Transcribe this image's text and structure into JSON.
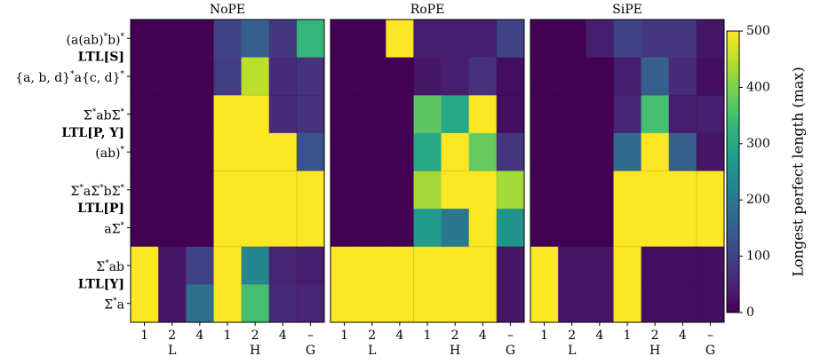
{
  "chart_data": {
    "type": "heatmap",
    "colormap": "viridis",
    "zlim": [
      0,
      500
    ],
    "zticks": [
      0,
      100,
      200,
      300,
      400,
      500
    ],
    "colorbar_label": "Longest perfect length (max)",
    "x_groups": [
      {
        "label": "L",
        "categories": [
          "1",
          "2",
          "4"
        ]
      },
      {
        "label": "H",
        "categories": [
          "1",
          "2",
          "4"
        ]
      },
      {
        "label": "G",
        "categories": [
          "–"
        ]
      }
    ],
    "y_groups": [
      {
        "label": "LTL[S]",
        "categories": [
          "(a(ab)*b)*",
          "{a, b, d}*a{c, d}*"
        ]
      },
      {
        "label": "LTL[P, Y]",
        "categories": [
          "Σ*abΣ*",
          "(ab)*"
        ]
      },
      {
        "label": "LTL[P]",
        "categories": [
          "Σ*aΣ*bΣ*",
          "aΣ*"
        ]
      },
      {
        "label": "LTL[Y]",
        "categories": [
          "Σ*ab",
          "Σ*a"
        ]
      }
    ],
    "panels": [
      {
        "title": "NoPE",
        "values": [
          [
            0,
            0,
            0,
            100,
            150,
            80,
            330
          ],
          [
            0,
            0,
            0,
            90,
            450,
            60,
            70
          ],
          [
            0,
            0,
            0,
            500,
            500,
            60,
            70
          ],
          [
            0,
            0,
            0,
            500,
            500,
            500,
            130
          ],
          [
            0,
            0,
            0,
            500,
            500,
            500,
            500
          ],
          [
            0,
            0,
            0,
            500,
            500,
            500,
            500
          ],
          [
            500,
            30,
            100,
            500,
            230,
            50,
            40
          ],
          [
            500,
            30,
            180,
            500,
            350,
            60,
            50
          ]
        ]
      },
      {
        "title": "RoPE",
        "values": [
          [
            0,
            0,
            500,
            40,
            40,
            40,
            100
          ],
          [
            0,
            0,
            0,
            30,
            40,
            70,
            20
          ],
          [
            0,
            0,
            0,
            370,
            300,
            500,
            20
          ],
          [
            0,
            0,
            0,
            300,
            500,
            380,
            80
          ],
          [
            0,
            0,
            0,
            430,
            500,
            500,
            430
          ],
          [
            0,
            0,
            0,
            270,
            200,
            500,
            260
          ],
          [
            500,
            500,
            500,
            500,
            500,
            500,
            30
          ],
          [
            500,
            500,
            500,
            500,
            500,
            500,
            30
          ]
        ]
      },
      {
        "title": "SiPE",
        "values": [
          [
            0,
            0,
            40,
            100,
            80,
            80,
            30
          ],
          [
            0,
            0,
            0,
            40,
            150,
            60,
            20
          ],
          [
            0,
            0,
            0,
            50,
            350,
            40,
            40
          ],
          [
            0,
            0,
            0,
            170,
            500,
            150,
            30
          ],
          [
            0,
            0,
            0,
            500,
            500,
            500,
            500
          ],
          [
            0,
            0,
            0,
            500,
            500,
            500,
            500
          ],
          [
            500,
            30,
            30,
            500,
            20,
            20,
            20
          ],
          [
            500,
            30,
            30,
            500,
            20,
            20,
            20
          ]
        ]
      }
    ]
  }
}
